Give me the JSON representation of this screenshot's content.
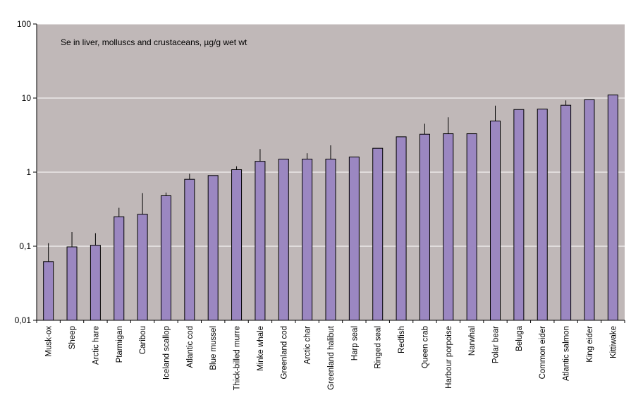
{
  "chart_data": {
    "type": "bar",
    "title": "Se in liver, molluscs and crustaceans, µg/g wet wt",
    "xlabel": "",
    "ylabel": "",
    "yscale": "log",
    "ylim": [
      0.01,
      100
    ],
    "yticks": [
      {
        "value": 0.01,
        "label": "0,01"
      },
      {
        "value": 0.1,
        "label": "0,1"
      },
      {
        "value": 1,
        "label": "1"
      },
      {
        "value": 10,
        "label": "10"
      },
      {
        "value": 100,
        "label": "100"
      }
    ],
    "grid": true,
    "categories": [
      "Musk-ox",
      "Sheep",
      "Arctic hare",
      "Ptarmigan",
      "Caribou",
      "Iceland scallop",
      "Atlantic cod",
      "Blue mussel",
      "Thick-billed murre",
      "Minke whale",
      "Greenland cod",
      "Arctic char",
      "Greenland halibut",
      "Harp seal",
      "Ringed seal",
      "Redfish",
      "Queen crab",
      "Harbour porpoise",
      "Narwhal",
      "Polar bear",
      "Beluga",
      "Common eider",
      "Atlantic salmon",
      "King eider",
      "Kittiwake"
    ],
    "values": [
      0.062,
      0.098,
      0.103,
      0.25,
      0.27,
      0.48,
      0.8,
      0.9,
      1.08,
      1.4,
      1.5,
      1.5,
      1.5,
      1.6,
      2.1,
      3.0,
      3.25,
      3.3,
      3.3,
      4.9,
      7.0,
      7.1,
      8.0,
      9.5,
      11.0
    ],
    "error_upper": [
      0.11,
      0.155,
      0.15,
      0.33,
      0.52,
      0.53,
      0.95,
      null,
      1.2,
      2.05,
      null,
      1.8,
      2.3,
      null,
      null,
      null,
      4.5,
      5.5,
      null,
      7.9,
      null,
      null,
      9.3,
      null,
      null
    ],
    "colors": {
      "plot_background": "#c0b8b8",
      "bar_fill": "#9b87c1",
      "bar_stroke": "#000000",
      "gridline": "#ffffff"
    }
  }
}
